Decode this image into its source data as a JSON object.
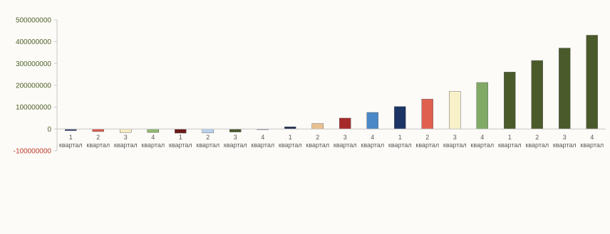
{
  "chart_data": {
    "type": "bar",
    "title": "",
    "xlabel": "",
    "ylabel": "",
    "ylim": [
      -100000000,
      500000000
    ],
    "yticks": [
      {
        "value": 500000000,
        "label": "500000000"
      },
      {
        "value": 400000000,
        "label": "400000000"
      },
      {
        "value": 300000000,
        "label": "300000000"
      },
      {
        "value": 200000000,
        "label": "200000000"
      },
      {
        "value": 100000000,
        "label": "100000000"
      },
      {
        "value": 0,
        "label": "0"
      },
      {
        "value": -100000000,
        "label": "-100000000"
      }
    ],
    "grid": false,
    "legend": "none",
    "categories": [
      {
        "num": "1",
        "word": "квартал"
      },
      {
        "num": "2",
        "word": "квартал"
      },
      {
        "num": "3",
        "word": "квартал"
      },
      {
        "num": "4",
        "word": "квартал"
      },
      {
        "num": "1",
        "word": "квартал"
      },
      {
        "num": "2",
        "word": "квартал"
      },
      {
        "num": "3",
        "word": "квартал"
      },
      {
        "num": "4",
        "word": "квартал"
      },
      {
        "num": "1",
        "word": "квартал"
      },
      {
        "num": "2",
        "word": "квартал"
      },
      {
        "num": "3",
        "word": "квартал"
      },
      {
        "num": "4",
        "word": "квартал"
      },
      {
        "num": "1",
        "word": "квартал"
      },
      {
        "num": "2",
        "word": "квартал"
      },
      {
        "num": "3",
        "word": "квартал"
      },
      {
        "num": "4",
        "word": "квартал"
      },
      {
        "num": "1",
        "word": "квартал"
      },
      {
        "num": "2",
        "word": "квартал"
      },
      {
        "num": "3",
        "word": "квартал"
      },
      {
        "num": "4",
        "word": "квартал"
      }
    ],
    "values": [
      -8000000,
      -12000000,
      -16000000,
      -16000000,
      -19000000,
      -18000000,
      -14000000,
      -3000000,
      10000000,
      25000000,
      50000000,
      76000000,
      103000000,
      137000000,
      172000000,
      213000000,
      261000000,
      314000000,
      371000000,
      430000000
    ],
    "colors": [
      "#3a4a7a",
      "#d85a50",
      "#f5ecc0",
      "#8fb870",
      "#6a1a1a",
      "#b8d2ec",
      "#4a5a2a",
      "#3a5a8a",
      "#203050",
      "#e8c090",
      "#a52a2a",
      "#4a88c8",
      "#1c3565",
      "#e06050",
      "#f8f0c8",
      "#80aa65",
      "#4a5a2a",
      "#4a5a2a",
      "#4a5a2a",
      "#4a5a2a"
    ],
    "axis_color": "#c8c8c8",
    "positive_tick_color": "#4f6228",
    "negative_tick_color": "#c0392b"
  }
}
